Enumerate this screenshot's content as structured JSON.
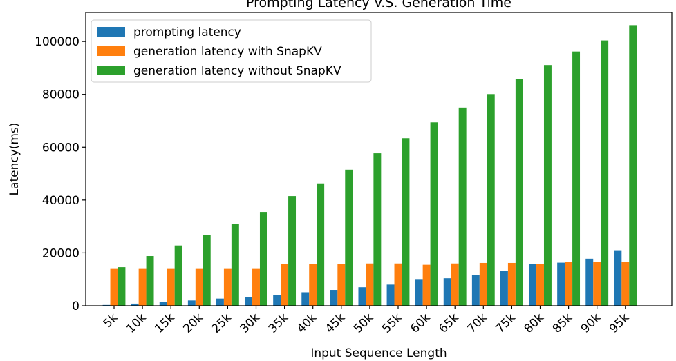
{
  "chart_data": {
    "type": "bar",
    "title": "Prompting Latency V.S. Generation Time",
    "xlabel": "Input Sequence Length",
    "ylabel": "Latency(ms)",
    "ylim": [
      0,
      111000
    ],
    "yticks": [
      0,
      20000,
      40000,
      60000,
      80000,
      100000
    ],
    "grid": false,
    "legend_position": "top-left",
    "categories": [
      "5k",
      "10k",
      "15k",
      "20k",
      "25k",
      "30k",
      "35k",
      "40k",
      "45k",
      "50k",
      "55k",
      "60k",
      "65k",
      "70k",
      "75k",
      "80k",
      "85k",
      "90k",
      "95k"
    ],
    "series": [
      {
        "name": "prompting latency",
        "color": "#1f77b4",
        "values": [
          300,
          800,
          1500,
          2000,
          2700,
          3300,
          4100,
          5100,
          6000,
          7000,
          8000,
          10100,
          10400,
          11700,
          13100,
          15800,
          16300,
          17800,
          21000
        ]
      },
      {
        "name": "generation latency with SnapKV",
        "color": "#ff7f0e",
        "values": [
          14200,
          14200,
          14200,
          14200,
          14200,
          14200,
          15800,
          15800,
          15800,
          16000,
          16000,
          15500,
          16000,
          16200,
          16200,
          15800,
          16500,
          16700,
          16500
        ]
      },
      {
        "name": "generation latency without SnapKV",
        "color": "#2ca02c",
        "values": [
          14600,
          18800,
          22800,
          26700,
          31000,
          35500,
          41500,
          46300,
          51500,
          57700,
          63400,
          69400,
          75000,
          80100,
          85900,
          91100,
          96200,
          100400,
          106200
        ]
      }
    ]
  }
}
